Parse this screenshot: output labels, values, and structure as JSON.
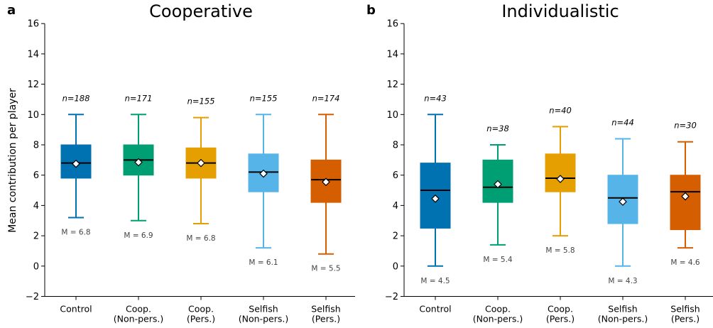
{
  "figure": {
    "ylabel": "Mean contribution per player",
    "y_ticks": [
      "−2",
      "0",
      "2",
      "4",
      "6",
      "8",
      "10",
      "12",
      "14",
      "16"
    ]
  },
  "chart_data": [
    {
      "type": "box",
      "panel": "a",
      "title": "Cooperative",
      "ylabel": "Mean contribution per player",
      "ylim": [
        -2,
        16
      ],
      "categories": [
        "Control",
        "Coop.\n(Non-pers.)",
        "Coop.\n(Pers.)",
        "Selfish\n(Non-pers.)",
        "Selfish\n(Pers.)"
      ],
      "boxes": [
        {
          "whisker_low": 3.2,
          "q1": 5.8,
          "median": 6.8,
          "q3": 8.0,
          "whisker_high": 10.0,
          "mean": 6.75,
          "n": "n=188",
          "mean_label": "M = 6.8",
          "color": "#0072b2"
        },
        {
          "whisker_low": 3.0,
          "q1": 6.0,
          "median": 7.0,
          "q3": 8.0,
          "whisker_high": 10.0,
          "mean": 6.85,
          "n": "n=171",
          "mean_label": "M = 6.9",
          "color": "#009e73"
        },
        {
          "whisker_low": 2.8,
          "q1": 5.8,
          "median": 6.8,
          "q3": 7.8,
          "whisker_high": 9.8,
          "mean": 6.8,
          "n": "n=155",
          "mean_label": "M = 6.8",
          "color": "#e69f00"
        },
        {
          "whisker_low": 1.2,
          "q1": 4.9,
          "median": 6.2,
          "q3": 7.4,
          "whisker_high": 10.0,
          "mean": 6.1,
          "n": "n=155",
          "mean_label": "M = 6.1",
          "color": "#56b4e9"
        },
        {
          "whisker_low": 0.8,
          "q1": 4.2,
          "median": 5.7,
          "q3": 7.0,
          "whisker_high": 10.0,
          "mean": 5.55,
          "n": "n=174",
          "mean_label": "M = 5.5",
          "color": "#d55e00"
        }
      ]
    },
    {
      "type": "box",
      "panel": "b",
      "title": "Individualistic",
      "ylim": [
        -2,
        16
      ],
      "categories": [
        "Control",
        "Coop.\n(Non-pers.)",
        "Coop.\n(Pers.)",
        "Selfish\n(Non-pers.)",
        "Selfish\n(Pers.)"
      ],
      "boxes": [
        {
          "whisker_low": 0.0,
          "q1": 2.5,
          "median": 5.0,
          "q3": 6.8,
          "whisker_high": 10.0,
          "mean": 4.45,
          "n": "n=43",
          "mean_label": "M = 4.5",
          "color": "#0072b2"
        },
        {
          "whisker_low": 1.4,
          "q1": 4.2,
          "median": 5.2,
          "q3": 7.0,
          "whisker_high": 8.0,
          "mean": 5.4,
          "n": "n=38",
          "mean_label": "M = 5.4",
          "color": "#009e73"
        },
        {
          "whisker_low": 2.0,
          "q1": 4.9,
          "median": 5.8,
          "q3": 7.4,
          "whisker_high": 9.2,
          "mean": 5.75,
          "n": "n=40",
          "mean_label": "M = 5.8",
          "color": "#e69f00"
        },
        {
          "whisker_low": 0.0,
          "q1": 2.8,
          "median": 4.5,
          "q3": 6.0,
          "whisker_high": 8.4,
          "mean": 4.25,
          "n": "n=44",
          "mean_label": "M = 4.3",
          "color": "#56b4e9"
        },
        {
          "whisker_low": 1.2,
          "q1": 2.4,
          "median": 4.9,
          "q3": 6.0,
          "whisker_high": 8.2,
          "mean": 4.6,
          "n": "n=30",
          "mean_label": "M = 4.6",
          "color": "#d55e00"
        }
      ]
    }
  ]
}
